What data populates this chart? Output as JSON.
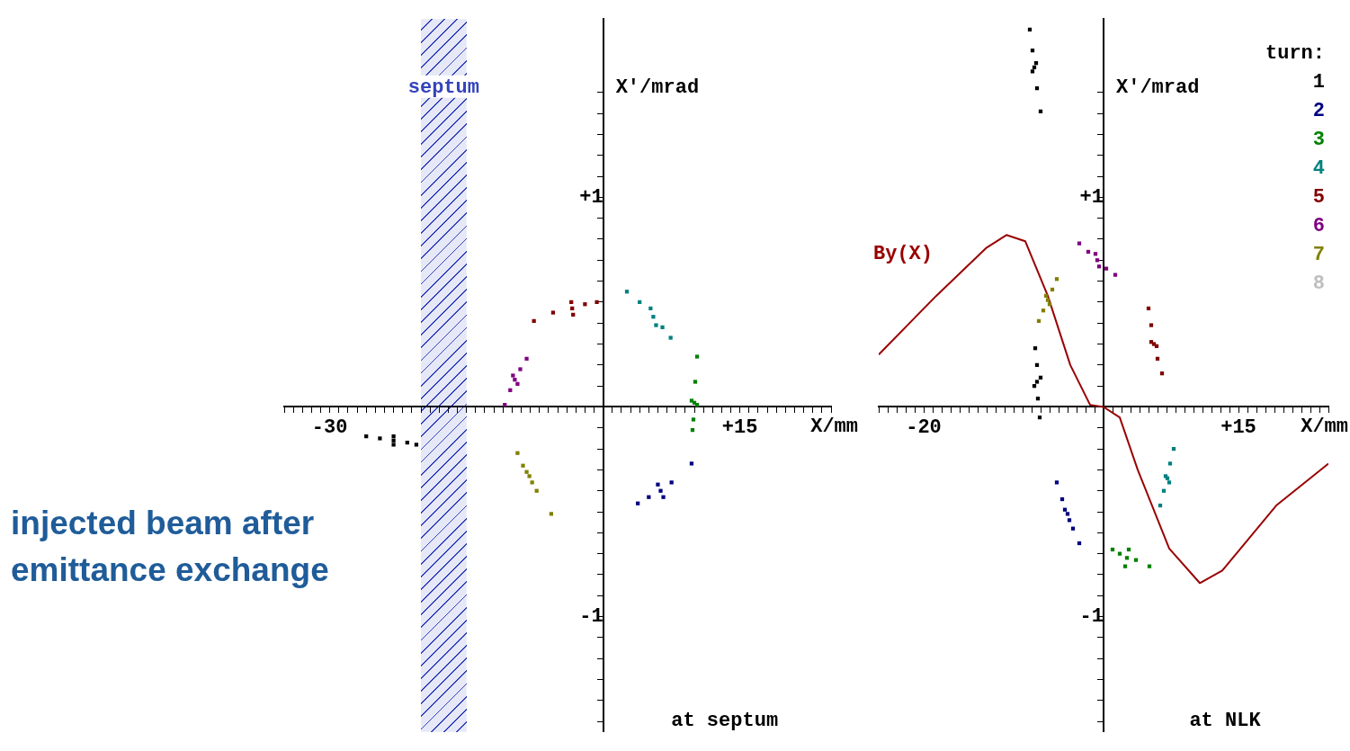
{
  "chart_data": [
    {
      "type": "scatter",
      "title": "injected beam after emittance exchange",
      "xlabel": "X/mm",
      "ylabel": "X'/mrad",
      "annotations": [
        "at septum"
      ],
      "marker": "square",
      "grid": false,
      "xlim": [
        -35,
        25
      ],
      "ylim": [
        -1.55,
        1.85
      ],
      "xticks": [
        {
          "value": -35,
          "label": null
        },
        {
          "value": -34,
          "label": null
        },
        {
          "value": -33,
          "label": null
        },
        {
          "value": -32,
          "label": null
        },
        {
          "value": -31,
          "label": null
        },
        -30,
        {
          "value": -29,
          "label": null
        },
        {
          "value": -28,
          "label": null
        },
        {
          "value": -27,
          "label": null
        },
        {
          "value": -26,
          "label": null
        },
        {
          "value": -25,
          "label": null
        },
        {
          "value": -24,
          "label": null
        },
        {
          "value": -23,
          "label": null
        },
        {
          "value": -22,
          "label": null
        },
        {
          "value": -21,
          "label": null
        },
        {
          "value": -20,
          "label": null
        },
        {
          "value": -19,
          "label": null
        },
        {
          "value": -18,
          "label": null
        },
        {
          "value": -17,
          "label": null
        },
        {
          "value": -16,
          "label": null
        },
        {
          "value": -15,
          "label": null
        },
        {
          "value": -14,
          "label": null
        },
        {
          "value": -13,
          "label": null
        },
        {
          "value": -12,
          "label": null
        },
        {
          "value": -11,
          "label": null
        },
        {
          "value": -10,
          "label": null
        },
        {
          "value": -9,
          "label": null
        },
        {
          "value": -8,
          "label": null
        },
        {
          "value": -7,
          "label": null
        },
        {
          "value": -6,
          "label": null
        },
        {
          "value": -5,
          "label": null
        },
        {
          "value": -4,
          "label": null
        },
        {
          "value": -3,
          "label": null
        },
        {
          "value": -2,
          "label": null
        },
        {
          "value": -1,
          "label": null
        },
        {
          "value": 0,
          "label": null
        },
        {
          "value": 1,
          "label": null
        },
        {
          "value": 2,
          "label": null
        },
        {
          "value": 3,
          "label": null
        },
        {
          "value": 4,
          "label": null
        },
        {
          "value": 5,
          "label": null
        },
        {
          "value": 6,
          "label": null
        },
        {
          "value": 7,
          "label": null
        },
        {
          "value": 8,
          "label": null
        },
        {
          "value": 9,
          "label": null
        },
        {
          "value": 10,
          "label": null
        },
        {
          "value": 11,
          "label": null
        },
        {
          "value": 12,
          "label": null
        },
        {
          "value": 13,
          "label": null
        },
        {
          "value": 14,
          "label": null
        },
        {
          "value": 15,
          "label": "+15"
        },
        {
          "value": 16,
          "label": null
        },
        {
          "value": 17,
          "label": null
        },
        {
          "value": 18,
          "label": null
        },
        {
          "value": 19,
          "label": null
        },
        {
          "value": 20,
          "label": null
        },
        {
          "value": 21,
          "label": null
        },
        {
          "value": 22,
          "label": null
        },
        {
          "value": 23,
          "label": null
        },
        {
          "value": 24,
          "label": null
        },
        {
          "value": 25,
          "label": null
        }
      ],
      "yticks": [
        {
          "value": -1.5,
          "label": null
        },
        {
          "value": -1.4,
          "label": null
        },
        {
          "value": -1.3,
          "label": null
        },
        {
          "value": -1.2,
          "label": null
        },
        {
          "value": -1.1,
          "label": null
        },
        -1,
        {
          "value": -0.9,
          "label": null
        },
        {
          "value": -0.8,
          "label": null
        },
        {
          "value": -0.7,
          "label": null
        },
        {
          "value": -0.6,
          "label": null
        },
        {
          "value": -0.5,
          "label": null
        },
        {
          "value": -0.4,
          "label": null
        },
        {
          "value": -0.3,
          "label": null
        },
        {
          "value": -0.2,
          "label": null
        },
        {
          "value": -0.1,
          "label": null
        },
        {
          "value": 0.1,
          "label": null
        },
        {
          "value": 0.2,
          "label": null
        },
        {
          "value": 0.3,
          "label": null
        },
        {
          "value": 0.4,
          "label": null
        },
        {
          "value": 0.5,
          "label": null
        },
        {
          "value": 0.6,
          "label": null
        },
        {
          "value": 0.7,
          "label": null
        },
        {
          "value": 0.8,
          "label": null
        },
        {
          "value": 0.9,
          "label": null
        },
        {
          "value": 1,
          "label": "+1"
        },
        {
          "value": 1.1,
          "label": null
        },
        {
          "value": 1.2,
          "label": null
        },
        {
          "value": 1.3,
          "label": null
        },
        {
          "value": 1.4,
          "label": null
        },
        {
          "value": 1.5,
          "label": null
        }
      ],
      "bands": [
        {
          "axis": "x",
          "from": -20,
          "to": -15,
          "label": "septum",
          "color": "#3344bb"
        }
      ],
      "series": [
        {
          "color": "#000000",
          "x": [
            -26,
            -24.5,
            -23,
            -21.5,
            -20.5,
            -23,
            -23
          ],
          "values": [
            -0.14,
            -0.15,
            -0.16,
            -0.17,
            -0.18,
            -0.14,
            -0.18
          ]
        },
        {
          "color": "#000080",
          "x": [
            3.8,
            5,
            6.3,
            7.5,
            9.7,
            6,
            6.6
          ],
          "values": [
            -0.46,
            -0.43,
            -0.4,
            -0.36,
            -0.27,
            -0.37,
            -0.43
          ]
        },
        {
          "color": "#008000",
          "x": [
            10.3,
            10.1,
            10,
            9.9,
            9.8,
            9.7,
            10.3
          ],
          "values": [
            0.24,
            0.12,
            0.02,
            -0.06,
            -0.11,
            0.03,
            0.01
          ]
        },
        {
          "color": "#008080",
          "x": [
            2.6,
            4,
            5.5,
            6.5,
            7.4,
            5.2,
            5.8
          ],
          "values": [
            0.55,
            0.5,
            0.43,
            0.38,
            0.33,
            0.47,
            0.39
          ]
        },
        {
          "color": "#800000",
          "x": [
            -7.6,
            -5.5,
            -3.4,
            -2,
            -0.7,
            -3.5,
            -3.3
          ],
          "values": [
            0.41,
            0.45,
            0.47,
            0.49,
            0.5,
            0.5,
            0.44
          ]
        },
        {
          "color": "#800080",
          "x": [
            -10.8,
            -10.2,
            -9.7,
            -9.1,
            -8.4,
            -9.9,
            -9.4
          ],
          "values": [
            0.01,
            0.08,
            0.13,
            0.18,
            0.23,
            0.15,
            0.11
          ]
        },
        {
          "color": "#808000",
          "x": [
            -9.4,
            -8.8,
            -8.1,
            -7.3,
            -5.7,
            -8.4,
            -7.8
          ],
          "values": [
            -0.22,
            -0.28,
            -0.33,
            -0.4,
            -0.51,
            -0.31,
            -0.36
          ]
        }
      ]
    },
    {
      "type": "scatter",
      "xlabel": "X/mm",
      "ylabel": "X'/mrad",
      "annotations": [
        "at NLK"
      ],
      "legend_title": "turn:",
      "legend": "top right",
      "marker": "square",
      "grid": false,
      "xlim": [
        -25,
        25
      ],
      "ylim": [
        -1.55,
        1.85
      ],
      "xticks": [
        {
          "value": -25,
          "label": null
        },
        {
          "value": -24,
          "label": null
        },
        {
          "value": -23,
          "label": null
        },
        {
          "value": -22,
          "label": null
        },
        {
          "value": -21,
          "label": null
        },
        -20,
        {
          "value": -19,
          "label": null
        },
        {
          "value": -18,
          "label": null
        },
        {
          "value": -17,
          "label": null
        },
        {
          "value": -16,
          "label": null
        },
        {
          "value": -15,
          "label": null
        },
        {
          "value": -14,
          "label": null
        },
        {
          "value": -13,
          "label": null
        },
        {
          "value": -12,
          "label": null
        },
        {
          "value": -11,
          "label": null
        },
        {
          "value": -10,
          "label": null
        },
        {
          "value": -9,
          "label": null
        },
        {
          "value": -8,
          "label": null
        },
        {
          "value": -7,
          "label": null
        },
        {
          "value": -6,
          "label": null
        },
        {
          "value": -5,
          "label": null
        },
        {
          "value": -4,
          "label": null
        },
        {
          "value": -3,
          "label": null
        },
        {
          "value": -2,
          "label": null
        },
        {
          "value": -1,
          "label": null
        },
        {
          "value": 0,
          "label": null
        },
        {
          "value": 1,
          "label": null
        },
        {
          "value": 2,
          "label": null
        },
        {
          "value": 3,
          "label": null
        },
        {
          "value": 4,
          "label": null
        },
        {
          "value": 5,
          "label": null
        },
        {
          "value": 6,
          "label": null
        },
        {
          "value": 7,
          "label": null
        },
        {
          "value": 8,
          "label": null
        },
        {
          "value": 9,
          "label": null
        },
        {
          "value": 10,
          "label": null
        },
        {
          "value": 11,
          "label": null
        },
        {
          "value": 12,
          "label": null
        },
        {
          "value": 13,
          "label": null
        },
        {
          "value": 14,
          "label": null
        },
        {
          "value": 15,
          "label": "+15"
        },
        {
          "value": 16,
          "label": null
        },
        {
          "value": 17,
          "label": null
        },
        {
          "value": 18,
          "label": null
        },
        {
          "value": 19,
          "label": null
        },
        {
          "value": 20,
          "label": null
        },
        {
          "value": 21,
          "label": null
        },
        {
          "value": 22,
          "label": null
        },
        {
          "value": 23,
          "label": null
        },
        {
          "value": 24,
          "label": null
        },
        {
          "value": 25,
          "label": null
        }
      ],
      "yticks": [
        {
          "value": -1.5,
          "label": null
        },
        {
          "value": -1.4,
          "label": null
        },
        {
          "value": -1.3,
          "label": null
        },
        {
          "value": -1.2,
          "label": null
        },
        {
          "value": -1.1,
          "label": null
        },
        -1,
        {
          "value": -0.9,
          "label": null
        },
        {
          "value": -0.8,
          "label": null
        },
        {
          "value": -0.7,
          "label": null
        },
        {
          "value": -0.6,
          "label": null
        },
        {
          "value": -0.5,
          "label": null
        },
        {
          "value": -0.4,
          "label": null
        },
        {
          "value": -0.3,
          "label": null
        },
        {
          "value": -0.2,
          "label": null
        },
        {
          "value": -0.1,
          "label": null
        },
        {
          "value": 0.1,
          "label": null
        },
        {
          "value": 0.2,
          "label": null
        },
        {
          "value": 0.3,
          "label": null
        },
        {
          "value": 0.4,
          "label": null
        },
        {
          "value": 0.5,
          "label": null
        },
        {
          "value": 0.6,
          "label": null
        },
        {
          "value": 0.7,
          "label": null
        },
        {
          "value": 0.8,
          "label": null
        },
        {
          "value": 0.9,
          "label": null
        },
        {
          "value": 1,
          "label": "+1"
        },
        {
          "value": 1.1,
          "label": null
        },
        {
          "value": 1.2,
          "label": null
        },
        {
          "value": 1.3,
          "label": null
        },
        {
          "value": 1.4,
          "label": null
        },
        {
          "value": 1.5,
          "label": null
        }
      ],
      "series": [
        {
          "name": "1",
          "color": "#000000",
          "x": [
            -8.2,
            -7.9,
            -7.7,
            -7.4,
            -7,
            -7.9,
            -7.5,
            -7.6,
            -7.4,
            -7.4,
            -7.3,
            -7.1,
            -7.7,
            -7
          ],
          "values": [
            1.8,
            1.7,
            1.62,
            1.52,
            1.41,
            1.6,
            1.64,
            0.28,
            0.2,
            0.12,
            0.04,
            -0.05,
            0.1,
            0.14
          ]
        },
        {
          "name": "2",
          "color": "#000080",
          "x": [
            -5.2,
            -4.6,
            -4,
            -3.4,
            -2.7,
            -4.3,
            -3.8
          ],
          "values": [
            -0.36,
            -0.44,
            -0.51,
            -0.58,
            -0.65,
            -0.49,
            -0.54
          ]
        },
        {
          "name": "3",
          "color": "#008000",
          "x": [
            1,
            1.8,
            2.6,
            3.6,
            5.1,
            2.4,
            2.8
          ],
          "values": [
            -0.68,
            -0.7,
            -0.72,
            -0.73,
            -0.76,
            -0.76,
            -0.68
          ]
        },
        {
          "name": "4",
          "color": "#008080",
          "x": [
            6.3,
            6.7,
            7.1,
            7.4,
            7.8,
            6.9,
            7.3
          ],
          "values": [
            -0.47,
            -0.4,
            -0.34,
            -0.27,
            -0.2,
            -0.33,
            -0.36
          ]
        },
        {
          "name": "5",
          "color": "#800000",
          "x": [
            5,
            5.3,
            5.6,
            6,
            6.5,
            5.3,
            5.9
          ],
          "values": [
            0.47,
            0.39,
            0.3,
            0.23,
            0.16,
            0.31,
            0.29
          ]
        },
        {
          "name": "6",
          "color": "#800080",
          "x": [
            -2.7,
            -1.7,
            -0.7,
            0.3,
            1.3,
            -0.9,
            -0.5
          ],
          "values": [
            0.78,
            0.74,
            0.7,
            0.66,
            0.63,
            0.73,
            0.67
          ]
        },
        {
          "name": "7",
          "color": "#808000",
          "x": [
            -7.2,
            -6.7,
            -6.2,
            -5.7,
            -5.2,
            -6.4,
            -6
          ],
          "values": [
            0.41,
            0.46,
            0.51,
            0.56,
            0.61,
            0.53,
            0.49
          ]
        },
        {
          "name": "8",
          "color": "#c0c0c0"
        },
        {
          "name": "By(X)",
          "type": "line",
          "color": "#990000",
          "marker": "none",
          "x": [
            -25,
            -18.6,
            -13,
            -10.8,
            -8.7,
            -6.2,
            -3.7,
            -1.5,
            0,
            1.8,
            3.8,
            7.3,
            10.7,
            13.2,
            19.2,
            25
          ],
          "values": [
            0.25,
            0.53,
            0.76,
            0.82,
            0.79,
            0.53,
            0.2,
            0.01,
            0,
            -0.05,
            -0.3,
            -0.675,
            -0.84,
            -0.78,
            -0.47,
            -0.27
          ]
        }
      ]
    }
  ]
}
